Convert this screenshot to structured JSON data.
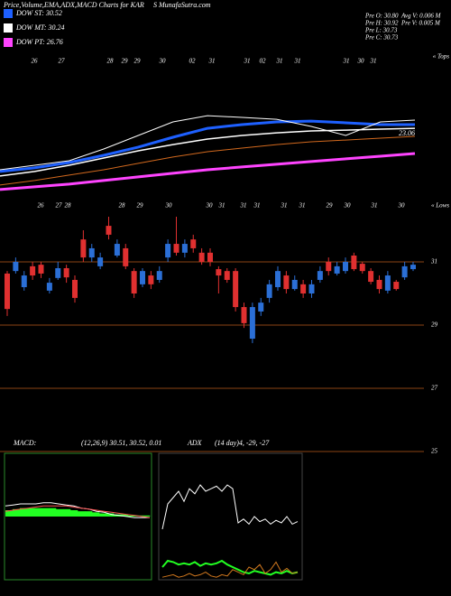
{
  "header": {
    "title": "Price,Volume,EMA,ADX,MACD Charts for KAR",
    "site": "S MunafaSutra.com"
  },
  "legend": [
    {
      "label": "DOW ST: 30.52",
      "color": "#1e60ff"
    },
    {
      "label": "DOW MT: 30.24",
      "color": "#ffffff"
    },
    {
      "label": "DOW PT: 26.76",
      "color": "#ff44ff"
    }
  ],
  "stats": [
    [
      "Pre  O: 30.80",
      "Pre  H: 30.92",
      "Pre  L: 30.73",
      "Pre  C: 30.73"
    ],
    [
      "Avg V: 0.006  M",
      "Pre  V: 0.005 M"
    ]
  ],
  "chart_data": [
    {
      "type": "line",
      "ylim": [
        20.5,
        39.3
      ],
      "annotations": [
        "23.06"
      ],
      "top_marker": "« Tops",
      "bottom_marker": "« Lows",
      "date_labels": [
        "26",
        "27",
        "28",
        "29",
        "29",
        "30",
        "02",
        "31",
        "31",
        "02",
        "31",
        "31",
        "31",
        "30",
        "31"
      ],
      "series": [
        {
          "color": "#d2691e",
          "width": 1,
          "values": [
            22.79,
            23.36,
            24.04,
            24.72,
            25.52,
            26.32,
            27.0,
            27.45,
            27.9,
            28.25,
            28.47,
            28.7,
            28.93
          ]
        },
        {
          "color": "#ff44ff",
          "width": 3,
          "values": [
            22.22,
            22.56,
            22.9,
            23.36,
            23.81,
            24.27,
            24.72,
            25.07,
            25.41,
            25.75,
            26.09,
            26.43,
            26.77
          ]
        },
        {
          "color": "#ffffff",
          "width": 1.5,
          "values": [
            23.93,
            24.5,
            25.29,
            26.2,
            27.11,
            27.9,
            28.59,
            29.04,
            29.38,
            29.61,
            29.72,
            29.84,
            29.95
          ]
        },
        {
          "color": "#1e60ff",
          "width": 3,
          "values": [
            24.5,
            24.95,
            25.63,
            26.54,
            27.57,
            28.82,
            29.95,
            30.41,
            30.75,
            30.86,
            30.64,
            30.41,
            30.41
          ]
        },
        {
          "color": "#ffffff",
          "width": 1,
          "values": [
            24.72,
            25.29,
            25.86,
            27.34,
            29.04,
            30.75,
            31.54,
            31.32,
            31.09,
            30.18,
            29.04,
            30.75,
            30.98
          ]
        }
      ]
    },
    {
      "type": "candlestick",
      "ylim": [
        25,
        32.6
      ],
      "yticks": [
        25,
        27,
        29,
        31
      ],
      "grid": true,
      "grid_color": "#8b4513",
      "up_color": "#2b6fd6",
      "down_color": "#e03030",
      "date_labels": [
        "26",
        "27",
        "28",
        "28",
        "29",
        "30",
        "30",
        "31",
        "31",
        "31",
        "31",
        "31",
        "29",
        "30",
        "31",
        "30"
      ],
      "open": [
        30.63,
        30.71,
        30.2,
        30.86,
        30.91,
        30.09,
        30.49,
        30.8,
        30.43,
        31.71,
        31.14,
        30.86,
        32.14,
        31.2,
        31.43,
        30.71,
        30.29,
        30.57,
        30.43,
        31.14,
        31.57,
        31.29,
        31.71,
        31.29,
        31.29,
        30.77,
        30.71,
        30.71,
        29.57,
        28.57,
        29.43,
        29.86,
        30.2,
        30.57,
        30.14,
        30.29,
        30.0,
        30.43,
        31.0,
        30.63,
        30.71,
        31.2,
        30.94,
        30.71,
        30.43,
        30.09,
        30.37,
        30.51,
        30.77
      ],
      "high": [
        30.71,
        31.14,
        30.71,
        31.0,
        31.0,
        30.49,
        31.0,
        30.91,
        30.57,
        32.0,
        31.57,
        31.29,
        32.43,
        31.71,
        31.57,
        30.8,
        30.8,
        30.71,
        30.86,
        31.71,
        32.43,
        31.71,
        31.86,
        31.43,
        31.43,
        30.86,
        30.8,
        30.8,
        29.71,
        29.71,
        29.86,
        30.43,
        30.86,
        30.71,
        30.57,
        30.43,
        30.43,
        30.86,
        31.14,
        31.0,
        31.14,
        31.29,
        31.0,
        30.8,
        30.57,
        30.71,
        30.43,
        31.0,
        31.0
      ],
      "low": [
        29.29,
        30.63,
        30.09,
        30.43,
        30.49,
        30.0,
        30.43,
        30.34,
        29.71,
        31.0,
        31.0,
        30.77,
        31.71,
        31.14,
        30.77,
        29.86,
        30.2,
        30.14,
        30.34,
        31.0,
        31.2,
        31.14,
        31.29,
        30.91,
        30.86,
        30.0,
        30.34,
        29.43,
        28.91,
        28.43,
        29.29,
        29.71,
        30.09,
        30.0,
        30.09,
        29.86,
        29.86,
        30.34,
        30.57,
        30.57,
        30.63,
        30.71,
        30.63,
        30.29,
        30.0,
        30.0,
        30.09,
        30.43,
        30.71
      ],
      "close": [
        29.51,
        31.0,
        30.57,
        30.57,
        30.63,
        30.34,
        30.8,
        30.51,
        29.86,
        31.14,
        31.43,
        31.14,
        31.86,
        31.57,
        30.86,
        30.0,
        30.71,
        30.29,
        30.71,
        31.57,
        31.29,
        31.57,
        31.43,
        31.0,
        31.0,
        30.57,
        30.43,
        29.57,
        29.06,
        29.57,
        29.71,
        30.29,
        30.71,
        30.14,
        30.43,
        30.0,
        30.29,
        30.71,
        30.71,
        30.86,
        31.0,
        30.77,
        30.71,
        30.37,
        30.14,
        30.57,
        30.14,
        30.86,
        30.91
      ]
    },
    {
      "type": "macd",
      "title": "MACD:",
      "subtitle": "(12,26,9) 30.51, 30.52, 0.01",
      "ylim": [
        -0.6,
        0.6
      ],
      "hist_color": "#22ff22",
      "histogram": [
        0.06,
        0.07,
        0.08,
        0.08,
        0.08,
        0.08,
        0.08,
        0.07,
        0.07,
        0.06,
        0.05,
        0.05,
        0.04,
        0.03,
        0.03,
        0.02,
        0.02,
        0.01,
        0.01,
        0.01
      ],
      "series": [
        {
          "color": "#ffffff",
          "values": [
            0.1,
            0.11,
            0.12,
            0.12,
            0.12,
            0.13,
            0.13,
            0.12,
            0.11,
            0.1,
            0.08,
            0.07,
            0.05,
            0.04,
            0.02,
            0.01,
            0.0,
            -0.01,
            -0.01,
            -0.01
          ]
        },
        {
          "color": "#ff5555",
          "values": [
            0.05,
            0.06,
            0.07,
            0.08,
            0.09,
            0.1,
            0.1,
            0.1,
            0.1,
            0.09,
            0.08,
            0.07,
            0.06,
            0.05,
            0.04,
            0.03,
            0.02,
            0.01,
            0.0,
            -0.01
          ]
        }
      ]
    },
    {
      "type": "adx",
      "title": "ADX",
      "subtitle": "(14  day)4,  -29,  -27",
      "ylim": [
        0,
        100
      ],
      "series": [
        {
          "color": "#ffffff",
          "values": [
            40,
            60,
            65,
            70,
            62,
            72,
            68,
            75,
            70,
            72,
            74,
            70,
            75,
            72,
            45,
            48,
            44,
            50,
            46,
            48,
            44,
            47,
            45,
            50,
            44,
            46
          ]
        },
        {
          "color": "#22ff22",
          "width": 2,
          "values": [
            10,
            15,
            14,
            12,
            13,
            12,
            14,
            11,
            13,
            12,
            13,
            15,
            12,
            10,
            8,
            6,
            5,
            7,
            6,
            5,
            4,
            6,
            5,
            7,
            5,
            6
          ]
        },
        {
          "color": "#d2781e",
          "values": [
            2,
            3,
            4,
            2,
            3,
            5,
            3,
            4,
            6,
            3,
            2,
            4,
            3,
            8,
            6,
            4,
            10,
            8,
            12,
            5,
            8,
            14,
            6,
            9,
            5,
            6
          ]
        }
      ]
    }
  ]
}
